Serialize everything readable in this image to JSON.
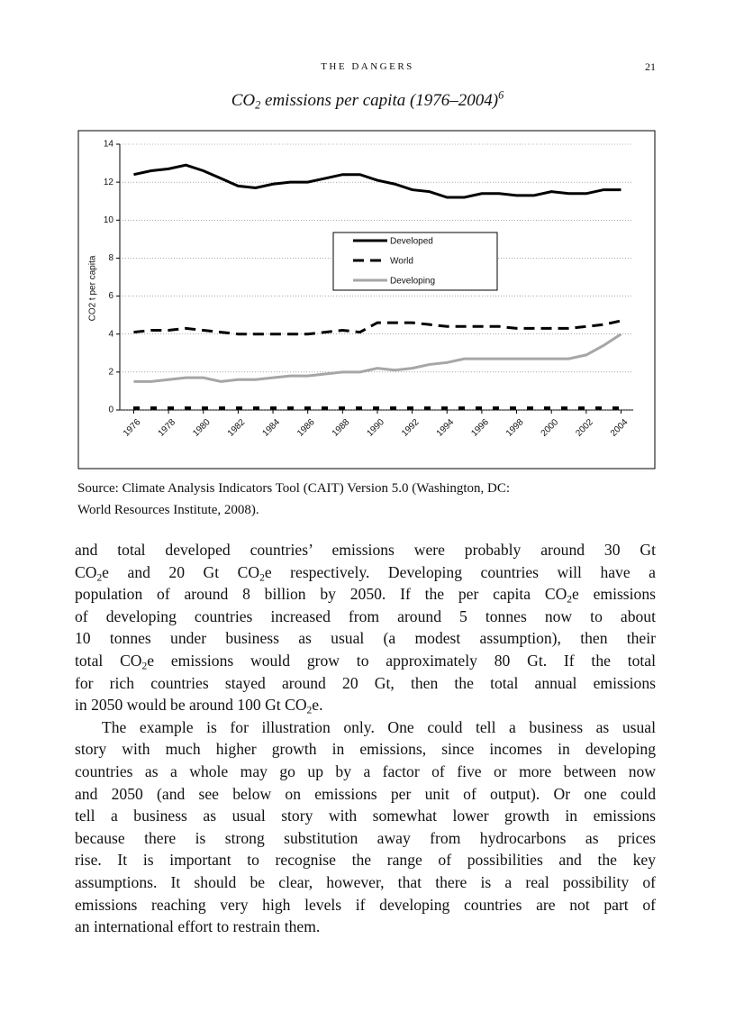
{
  "header": {
    "running_title": "THE DANGERS",
    "page_number": "21"
  },
  "chart_data": {
    "type": "line",
    "title": [
      "CO",
      {
        "sub": "2"
      },
      " emissions per capita (1976–2004)",
      {
        "sup": "6"
      }
    ],
    "y_label": "CO2 t per capita",
    "x": [
      1976,
      1977,
      1978,
      1979,
      1980,
      1981,
      1982,
      1983,
      1984,
      1985,
      1986,
      1987,
      1988,
      1989,
      1990,
      1991,
      1992,
      1993,
      1994,
      1995,
      1996,
      1997,
      1998,
      1999,
      2000,
      2001,
      2002,
      2003,
      2004
    ],
    "series": [
      {
        "name": "Developed",
        "color": "#000000",
        "style": "solid",
        "values": [
          12.4,
          12.6,
          12.7,
          12.9,
          12.6,
          12.2,
          11.8,
          11.7,
          11.9,
          12.0,
          12.0,
          12.2,
          12.4,
          12.4,
          12.1,
          11.9,
          11.6,
          11.5,
          11.2,
          11.2,
          11.4,
          11.4,
          11.3,
          11.3,
          11.5,
          11.4,
          11.4,
          11.6,
          11.6
        ]
      },
      {
        "name": "World",
        "color": "#000000",
        "style": "dashed",
        "values": [
          4.1,
          4.2,
          4.2,
          4.3,
          4.2,
          4.1,
          4.0,
          4.0,
          4.0,
          4.0,
          4.0,
          4.1,
          4.2,
          4.1,
          4.6,
          4.6,
          4.6,
          4.5,
          4.4,
          4.4,
          4.4,
          4.4,
          4.3,
          4.3,
          4.3,
          4.3,
          4.4,
          4.5,
          4.7
        ]
      },
      {
        "name": "Developing",
        "color": "#a6a6a6",
        "style": "solid",
        "values": [
          1.5,
          1.5,
          1.6,
          1.7,
          1.7,
          1.5,
          1.6,
          1.6,
          1.7,
          1.8,
          1.8,
          1.9,
          2.0,
          2.0,
          2.2,
          2.1,
          2.2,
          2.4,
          2.5,
          2.7,
          2.7,
          2.7,
          2.7,
          2.7,
          2.7,
          2.7,
          2.9,
          3.4,
          4.0
        ]
      }
    ],
    "xlim": [
      1975.2,
      2004.7
    ],
    "xticks": [
      1976,
      1978,
      1980,
      1982,
      1984,
      1986,
      1988,
      1990,
      1992,
      1994,
      1996,
      1998,
      2000,
      2002,
      2004
    ],
    "ylim": [
      0,
      14
    ],
    "yticks": [
      0,
      2,
      4,
      6,
      8,
      10,
      12,
      14
    ],
    "grid": true,
    "legend": "top"
  },
  "source": [
    "Source: Climate Analysis Indicators Tool (CAIT) Version 5.0 (Washington, DC:",
    "World Resources Institute, 2008)."
  ],
  "paragraphs": [
    [
      [
        "and total developed countries’ emissions were probably around 30 Gt"
      ],
      [
        "CO",
        {
          "sub": "2"
        },
        "e and 20 Gt CO",
        {
          "sub": "2"
        },
        "e respectively. Developing countries will have a"
      ],
      [
        "population of around 8 billion by 2050. If the per capita CO",
        {
          "sub": "2"
        },
        "e emissions"
      ],
      [
        "of developing countries increased from around 5 tonnes now to about"
      ],
      [
        "10 tonnes under business as usual (a modest assumption), then their"
      ],
      [
        "total CO",
        {
          "sub": "2"
        },
        "e emissions would grow to approximately 80 Gt. If the total"
      ],
      [
        "for rich countries stayed around 20 Gt, then the total annual emissions"
      ],
      [
        "in 2050 would be around 100 Gt CO",
        {
          "sub": "2"
        },
        "e."
      ]
    ],
    [
      [
        "The example is for illustration only. One could tell a business as usual"
      ],
      [
        "story with much higher growth in emissions, since incomes in developing"
      ],
      [
        "countries as a whole may go up by a factor of five or more between now"
      ],
      [
        "and 2050 (and see below on emissions per unit of output). Or one could"
      ],
      [
        "tell a business as usual story with somewhat lower growth in emissions"
      ],
      [
        "because there is strong substitution away from hydrocarbons as prices"
      ],
      [
        "rise. It is important to recognise the range of possibilities and the key"
      ],
      [
        "assumptions. It should be clear, however, that there is a real possibility of"
      ],
      [
        "emissions reaching very high levels if developing countries are not part of"
      ],
      [
        "an international effort to restrain them."
      ]
    ]
  ]
}
